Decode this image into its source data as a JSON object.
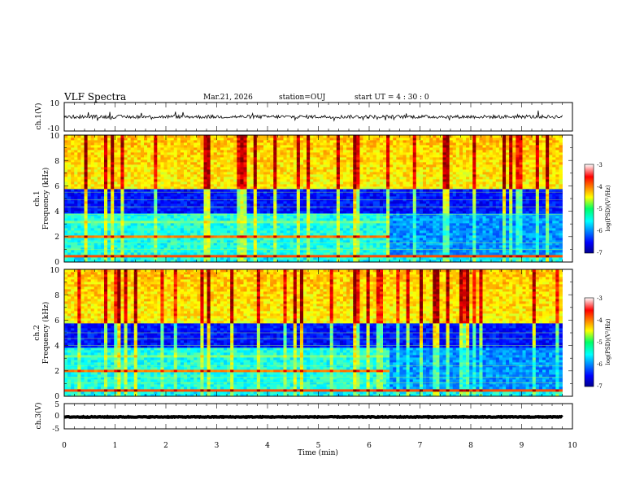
{
  "header": {
    "title": "VLF Spectra",
    "date": "Mar.21, 2026",
    "station": "station=OUJ",
    "start": "start UT =  4 : 30 : 0"
  },
  "colors": {
    "bg": "#ffffff",
    "axis": "#000000",
    "spectrogram_dark": "#00008f",
    "spectrogram_hot": "#ff0000"
  },
  "chart_data": [
    {
      "type": "line",
      "panel": "ch1-waveform",
      "ylabel": "ch.1(V)",
      "ylim": [
        -10,
        10
      ],
      "yticks": [
        "10",
        "-10"
      ],
      "xlim": [
        0,
        10
      ],
      "baseline": 0,
      "noise_amplitude": 1.2
    },
    {
      "type": "heatmap",
      "panel": "ch1-spectrogram",
      "ylabel_lines": [
        "ch.1",
        "Frequency (kHz)"
      ],
      "ylim": [
        0,
        10
      ],
      "yticks": [
        "0",
        "2",
        "4",
        "6",
        "8",
        "10"
      ],
      "xlim": [
        0,
        10
      ],
      "data_end_min": 9.8,
      "change_min": 6.4,
      "colorbar": {
        "label": "log(PSD)(V²/Hz)",
        "range": [
          -7,
          -3
        ],
        "ticks": [
          "-3",
          "-4",
          "-5",
          "-6",
          "-7"
        ]
      }
    },
    {
      "type": "heatmap",
      "panel": "ch2-spectrogram",
      "ylabel_lines": [
        "ch.2",
        "Frequency (kHz)"
      ],
      "ylim": [
        0,
        10
      ],
      "yticks": [
        "0",
        "2",
        "4",
        "6",
        "8",
        "10"
      ],
      "xlim": [
        0,
        10
      ],
      "data_end_min": 9.8,
      "change_min": 6.4,
      "colorbar": {
        "label": "log(PSD)(V²/Hz)",
        "range": [
          -7,
          -3
        ],
        "ticks": [
          "-3",
          "-4",
          "-5",
          "-6",
          "-7"
        ]
      }
    },
    {
      "type": "line",
      "panel": "ch3-waveform",
      "ylabel": "ch.3(V)",
      "ylim": [
        -5,
        5
      ],
      "yticks": [
        "5",
        "0",
        "-5"
      ],
      "xlim": [
        0,
        10
      ],
      "xlabel": "Time (min)",
      "xticks": [
        "0",
        "1",
        "2",
        "3",
        "4",
        "5",
        "6",
        "7",
        "8",
        "9",
        "10"
      ],
      "baseline": -0.3,
      "noise_amplitude": 0.15
    }
  ]
}
